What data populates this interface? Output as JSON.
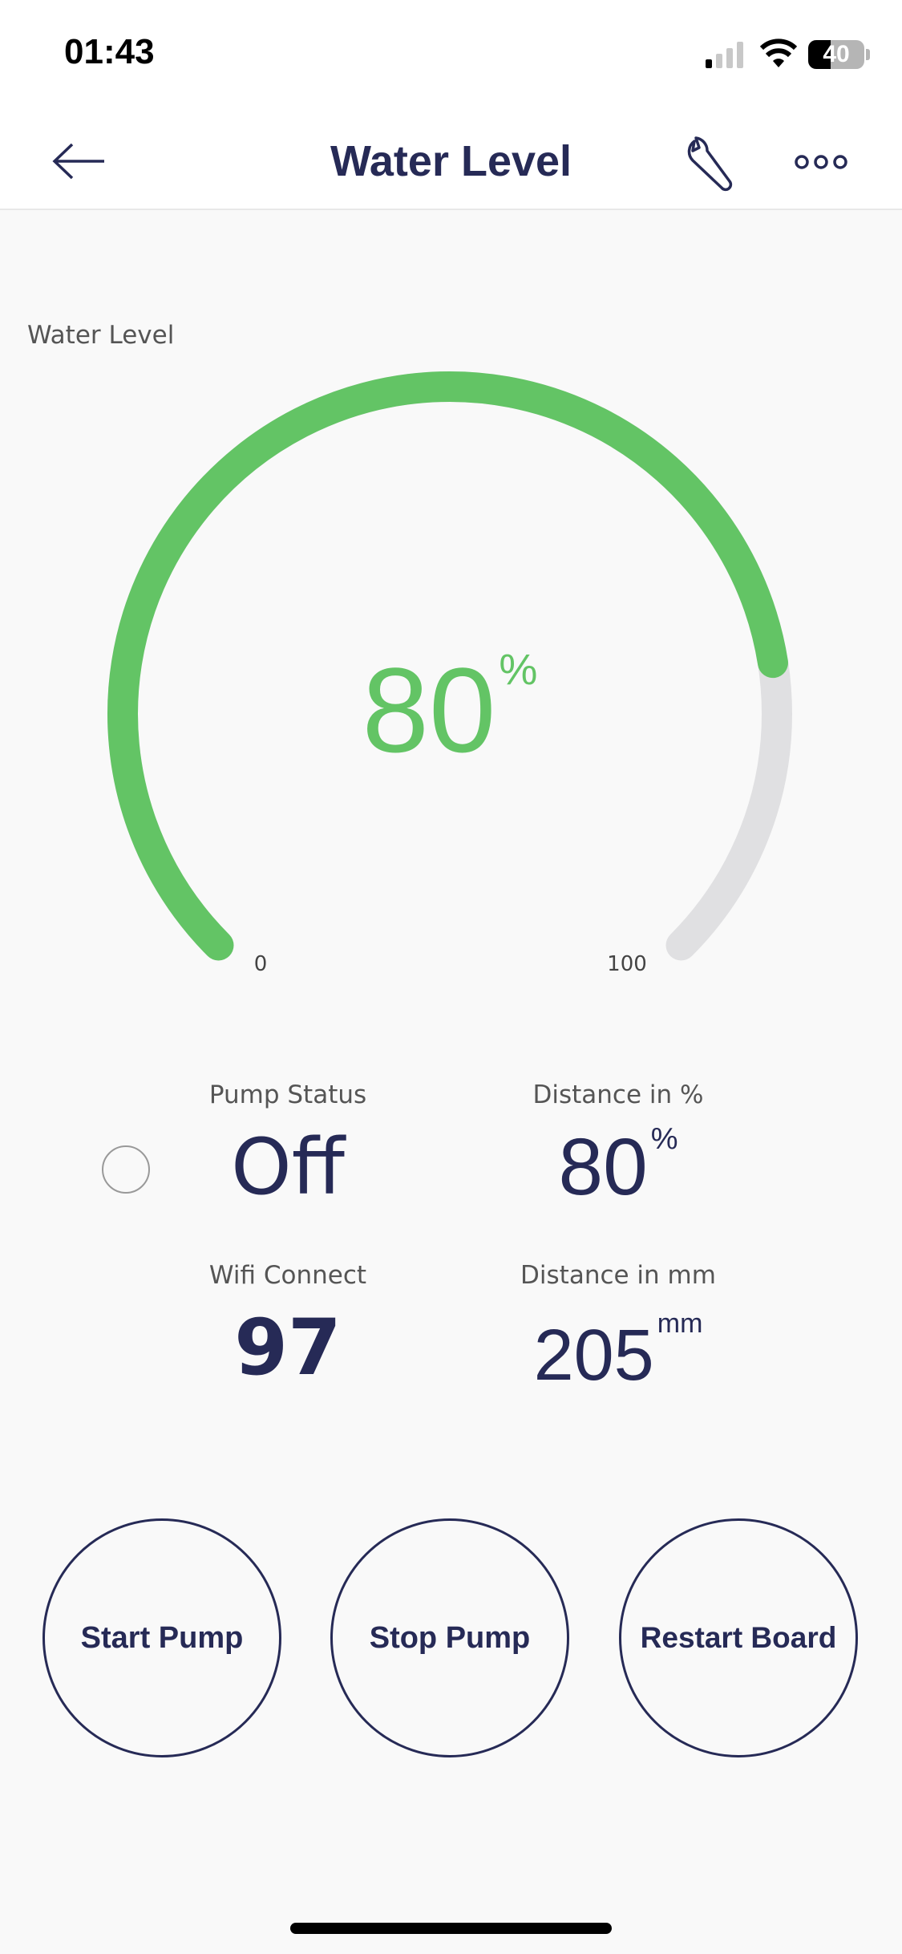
{
  "status_bar": {
    "time": "01:43",
    "battery": "40"
  },
  "header": {
    "title": "Water Level"
  },
  "gauge": {
    "label": "Water Level",
    "value": 80,
    "unit": "%",
    "min_label": "0",
    "max_label": "100",
    "min": 0,
    "max": 100,
    "fill_color": "#63c465",
    "track_color": "#e0e0e2"
  },
  "widgets": {
    "pump_status": {
      "label": "Pump Status",
      "value": "Off"
    },
    "distance_pct": {
      "label": "Distance in %",
      "value": "80",
      "unit": "%"
    },
    "wifi": {
      "label": "Wifi Connect",
      "value": "97"
    },
    "distance_mm": {
      "label": "Distance in mm",
      "value": "205",
      "unit": "mm"
    }
  },
  "buttons": {
    "start": "Start Pump",
    "stop": "Stop Pump",
    "restart": "Restart Board"
  }
}
